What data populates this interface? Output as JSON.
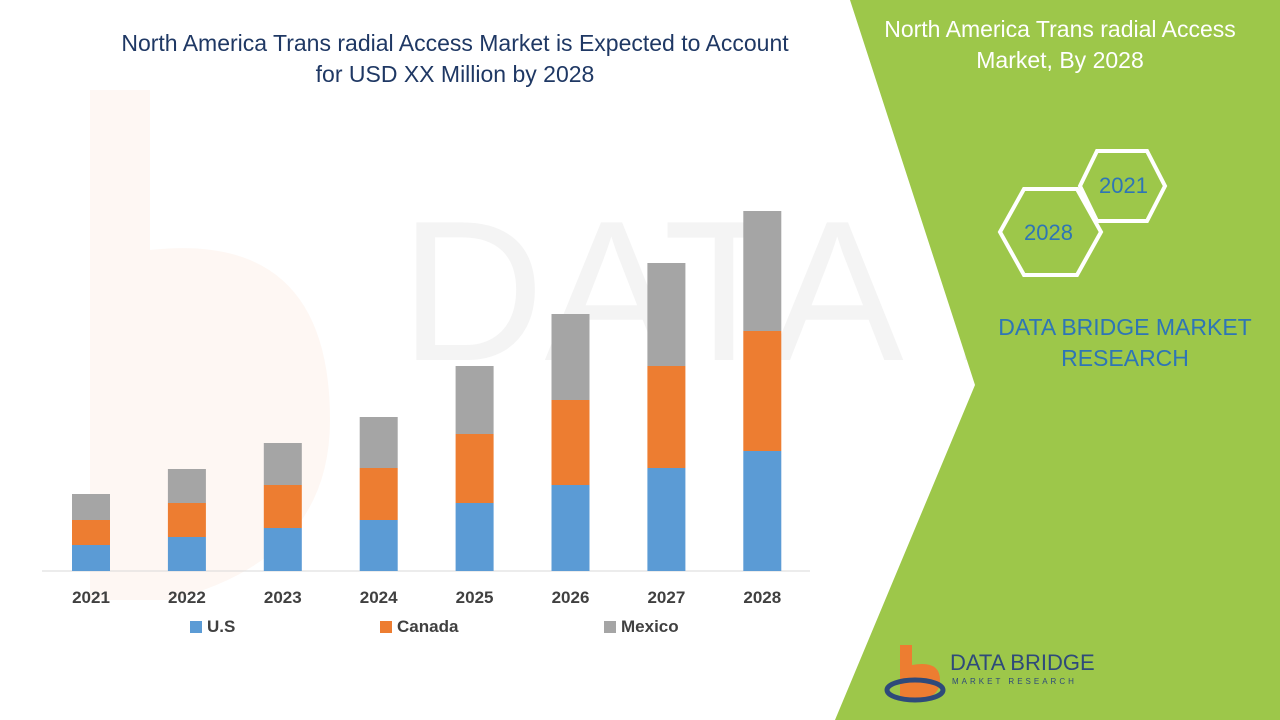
{
  "header": {
    "title": "North America Trans radial Access Market is Expected to Account for USD XX Million by 2028"
  },
  "side_panel": {
    "title": "North America Trans radial Access Market, By 2028",
    "hex_years": [
      "2021",
      "2028"
    ],
    "brand_text": "DATA BRIDGE MARKET RESEARCH",
    "panel_color": "#9dc74a"
  },
  "logo": {
    "name": "DATA BRIDGE",
    "tagline": "MARKET RESEARCH"
  },
  "watermark": "DATA BRIDGE MARKET RESEARCH",
  "chart_data": {
    "type": "bar",
    "stacked": true,
    "title": "North America Trans radial Access Market is Expected to Account for USD XX Million by 2028",
    "categories": [
      "2021",
      "2022",
      "2023",
      "2024",
      "2025",
      "2026",
      "2027",
      "2028"
    ],
    "series": [
      {
        "name": "U.S",
        "color": "#5b9bd5",
        "values": [
          26,
          34,
          43,
          51,
          68,
          86,
          103,
          120
        ]
      },
      {
        "name": "Canada",
        "color": "#ed7d31",
        "values": [
          25,
          34,
          43,
          52,
          69,
          85,
          102,
          120
        ]
      },
      {
        "name": "Mexico",
        "color": "#a5a5a5",
        "values": [
          26,
          34,
          42,
          51,
          68,
          86,
          103,
          120
        ]
      }
    ],
    "ylim": [
      0,
      360
    ],
    "y_axis_shown": false,
    "grid": false,
    "legend_position": "bottom",
    "xlabel": "",
    "ylabel": ""
  }
}
